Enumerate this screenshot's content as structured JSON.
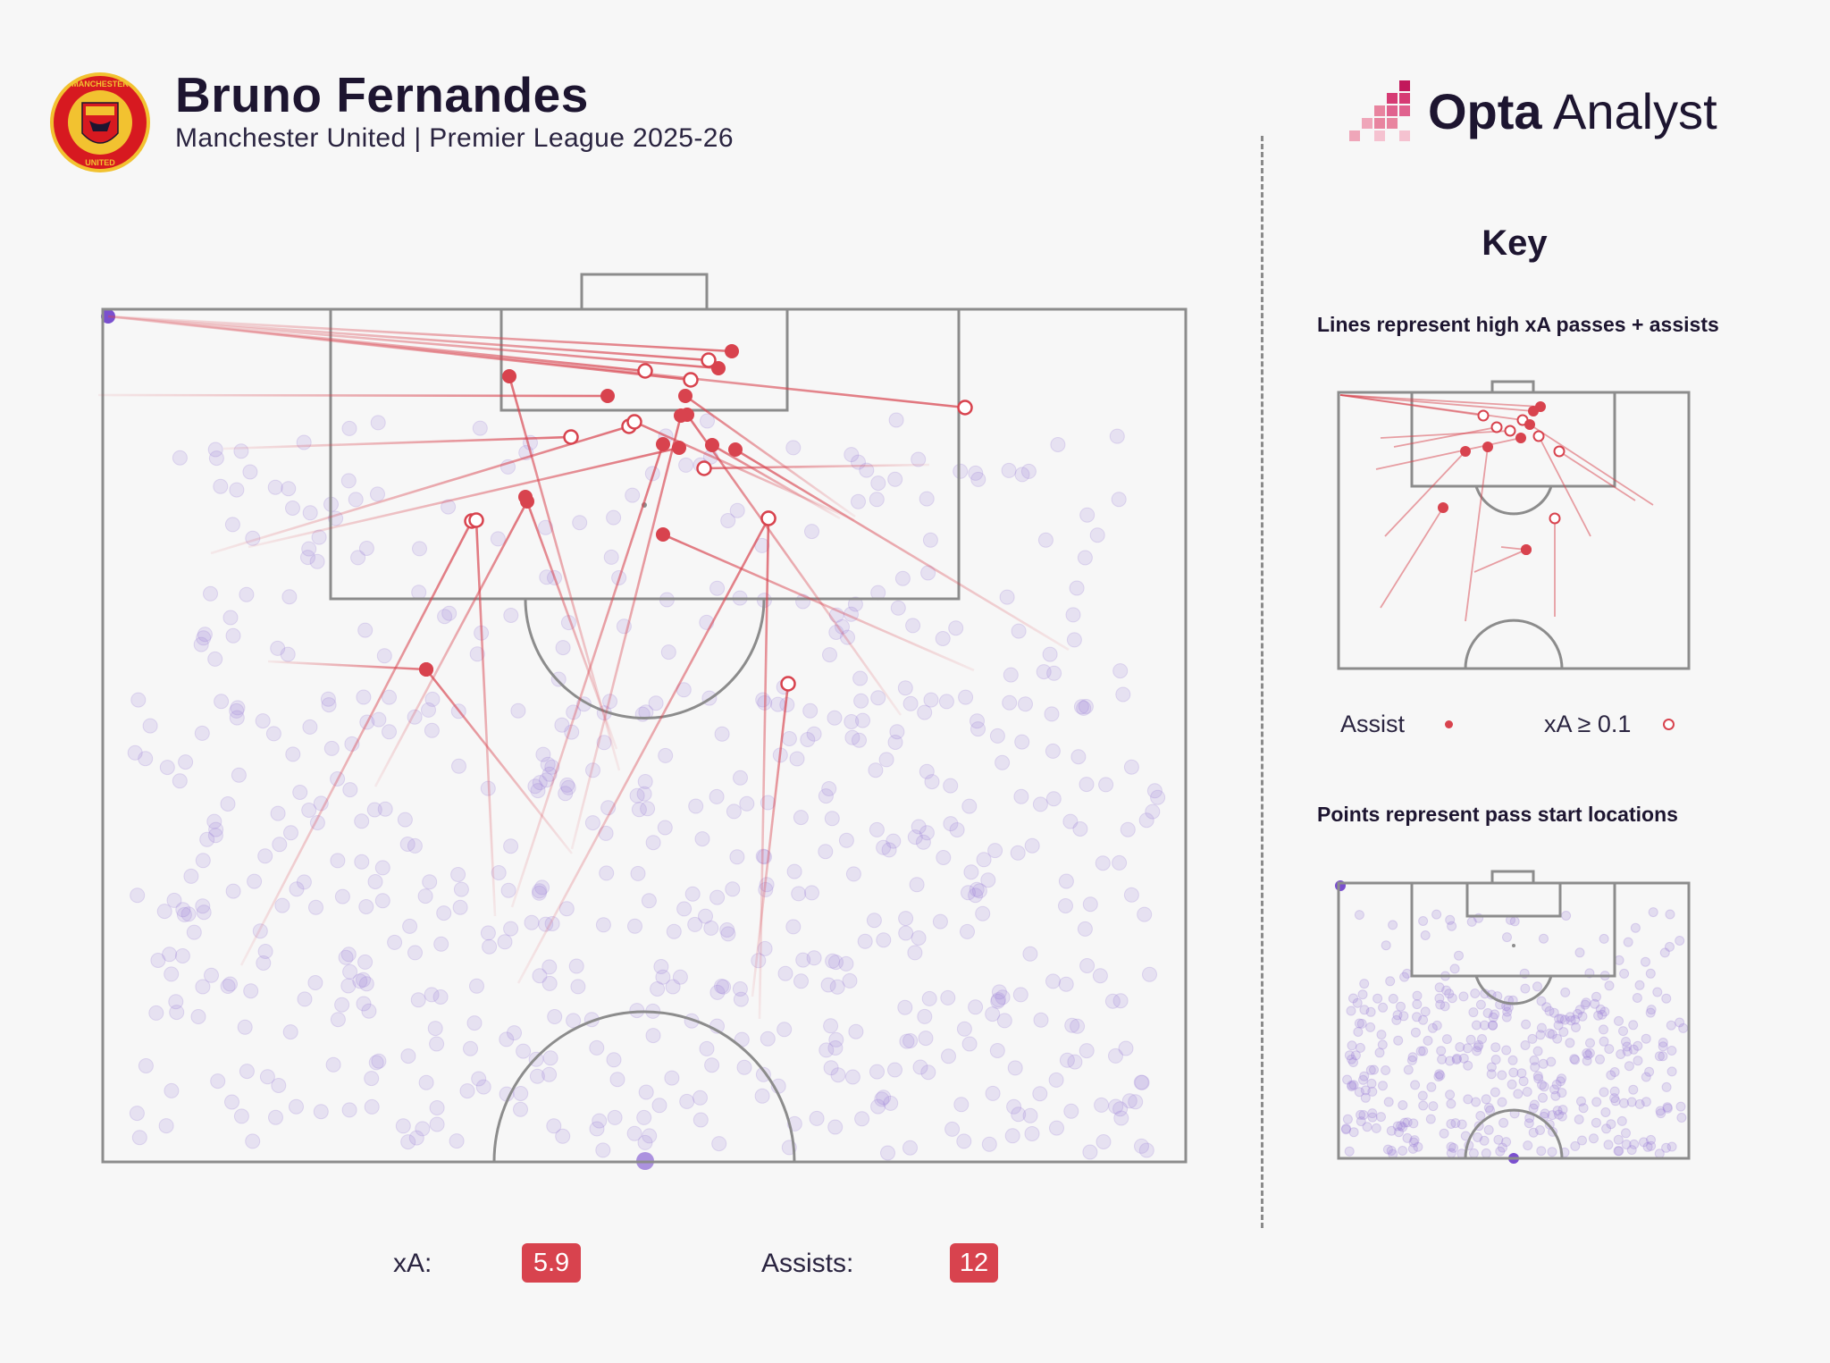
{
  "header": {
    "player_name": "Bruno Fernandes",
    "subtitle": "Manchester United | Premier League 2025-26",
    "crest_lettering": [
      "MANCHESTER",
      "UNITED"
    ]
  },
  "brand": {
    "name_bold": "Opta",
    "name_regular": "Analyst"
  },
  "key": {
    "title": "Key",
    "lines_caption": "Lines represent high xA passes + assists",
    "points_caption": "Points represent pass start locations",
    "legend_assist": "Assist",
    "legend_xa": "xA ≥ 0.1"
  },
  "stats": {
    "xa_label": "xA:",
    "xa_value": "5.9",
    "assists_label": "Assists:",
    "assists_value": "12"
  },
  "colors": {
    "assist_red": "#d8434e",
    "point_purple": "#9b7fd6",
    "pitch_line": "#8c8c8c",
    "brand_pink": "#c2185b"
  }
}
